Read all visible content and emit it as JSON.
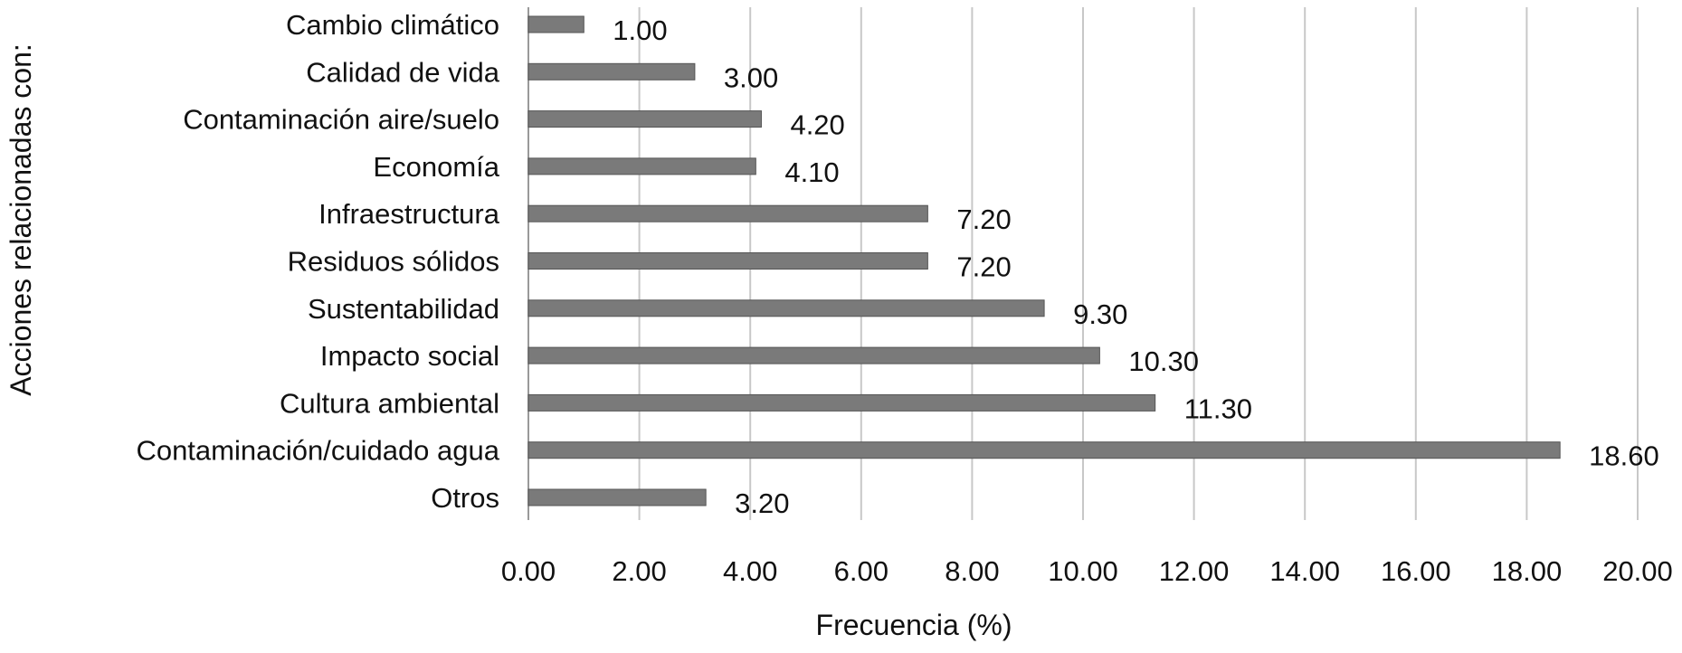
{
  "chart_data": {
    "type": "bar",
    "orientation": "horizontal",
    "categories": [
      "Cambio climático",
      "Calidad de vida",
      "Contaminación aire/suelo",
      "Economía",
      "Infraestructura",
      "Residuos sólidos",
      "Sustentabilidad",
      "Impacto social",
      "Cultura ambiental",
      "Contaminación/cuidado agua",
      "Otros"
    ],
    "values": [
      1.0,
      3.0,
      4.2,
      4.1,
      7.2,
      7.2,
      9.3,
      10.3,
      11.3,
      18.6,
      3.2
    ],
    "value_labels": [
      "1.00",
      "3.00",
      "4.20",
      "4.10",
      "7.20",
      "7.20",
      "9.30",
      "10.30",
      "11.30",
      "18.60",
      "3.20"
    ],
    "x_ticks": [
      "0.00",
      "2.00",
      "4.00",
      "6.00",
      "8.00",
      "10.00",
      "12.00",
      "14.00",
      "16.00",
      "18.00",
      "20.00"
    ],
    "xlim": [
      0,
      20
    ],
    "xlabel": "Frecuencia (%)",
    "ylabel": "Acciones relacionadas con:",
    "title": "",
    "grid": "vertical",
    "legend": "none",
    "bar_color": "#7a7a7a"
  }
}
